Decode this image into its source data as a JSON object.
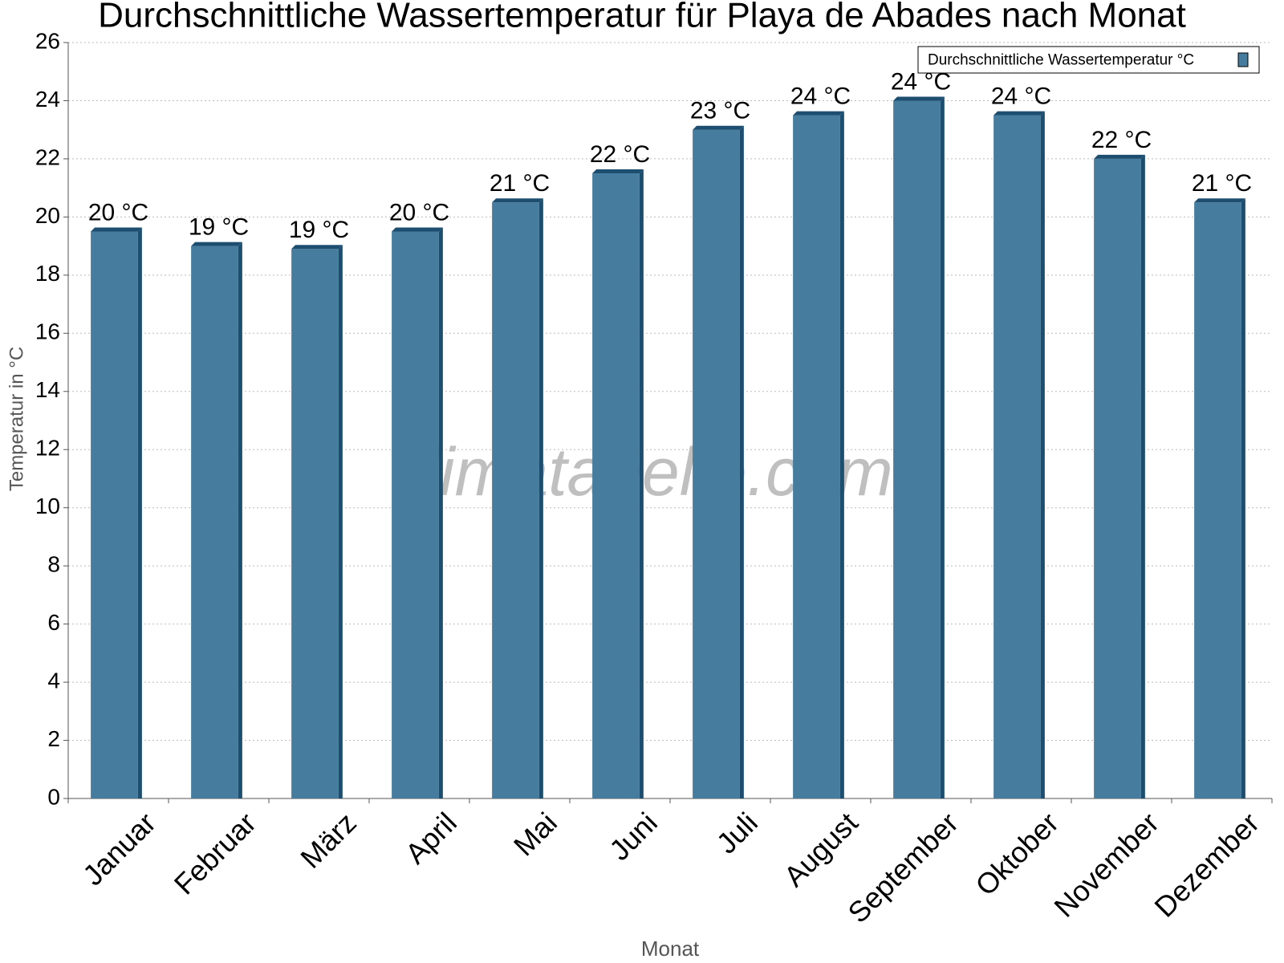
{
  "chart_data": {
    "type": "bar",
    "title": "Durchschnittliche Wassertemperatur für Playa de Abades nach Monat",
    "x_label": "Monat",
    "y_label": "Temperatur in °C",
    "watermark": "klimatabelle.com",
    "categories": [
      "Januar",
      "Februar",
      "März",
      "April",
      "Mai",
      "Juni",
      "Juli",
      "August",
      "September",
      "Oktober",
      "November",
      "Dezember"
    ],
    "series": [
      {
        "name": "Durchschnittliche Wassertemperatur °C",
        "color": "#467c9e",
        "values": [
          19.5,
          19.0,
          18.9,
          19.5,
          20.5,
          21.5,
          23.0,
          23.5,
          24.0,
          23.5,
          22.0,
          20.5
        ],
        "value_labels": [
          "20 °C",
          "19 °C",
          "19 °C",
          "20 °C",
          "21 °C",
          "22 °C",
          "23 °C",
          "24 °C",
          "24 °C",
          "24 °C",
          "22 °C",
          "21 °C"
        ]
      }
    ],
    "ylim": [
      0,
      26
    ],
    "yticks": [
      0,
      2,
      4,
      6,
      8,
      10,
      12,
      14,
      16,
      18,
      20,
      22,
      24,
      26
    ],
    "grid": true,
    "legend": "top-right"
  }
}
